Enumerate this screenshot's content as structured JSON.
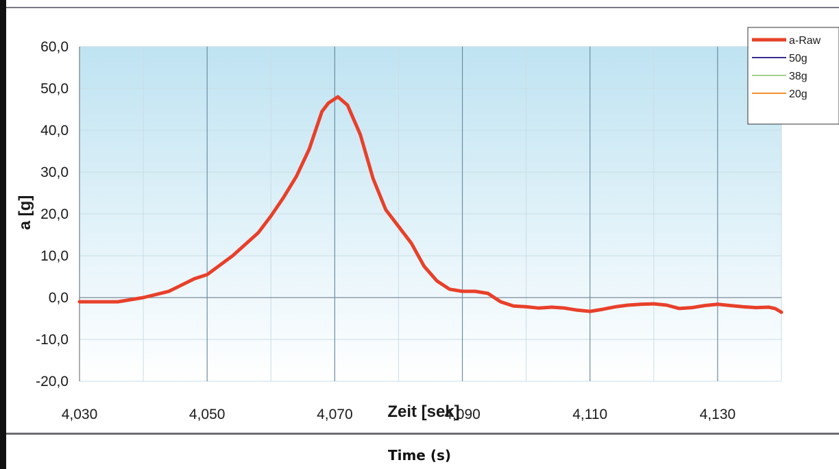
{
  "caption": "Time (s)",
  "chart_data": {
    "type": "line",
    "title": "",
    "xlabel": "Zeit [sek]",
    "ylabel": "a [g]",
    "xlim": [
      4.03,
      4.14
    ],
    "ylim": [
      -20,
      60
    ],
    "grid": true,
    "x_ticks": [
      "4,030",
      "4,050",
      "4,070",
      "4,090",
      "4,110",
      "4,130"
    ],
    "y_ticks": [
      "60,0",
      "50,0",
      "40,0",
      "30,0",
      "20,0",
      "10,0",
      "0,0",
      "-10,0",
      "-20,0"
    ],
    "legend_position": "top-right",
    "legend": [
      {
        "name": "a-Raw",
        "color": "#e8402a"
      },
      {
        "name": "50g",
        "color": "#3a2d8f"
      },
      {
        "name": "38g",
        "color": "#a6cf8a"
      },
      {
        "name": "20g",
        "color": "#f0902a"
      }
    ],
    "series": [
      {
        "name": "a-Raw",
        "color": "#e8402a",
        "x": [
          4.03,
          4.036,
          4.04,
          4.044,
          4.048,
          4.05,
          4.054,
          4.058,
          4.06,
          4.062,
          4.064,
          4.066,
          4.068,
          4.069,
          4.0705,
          4.072,
          4.074,
          4.076,
          4.078,
          4.08,
          4.082,
          4.084,
          4.086,
          4.088,
          4.09,
          4.092,
          4.094,
          4.096,
          4.098,
          4.1,
          4.102,
          4.104,
          4.106,
          4.108,
          4.11,
          4.112,
          4.114,
          4.116,
          4.118,
          4.12,
          4.122,
          4.124,
          4.126,
          4.128,
          4.13,
          4.132,
          4.134,
          4.136,
          4.138,
          4.139,
          4.14
        ],
        "y": [
          -1.0,
          -1.0,
          0.0,
          1.5,
          4.5,
          5.5,
          10.0,
          15.5,
          19.5,
          24.0,
          29.0,
          35.5,
          44.5,
          46.5,
          48.0,
          46.0,
          39.0,
          28.5,
          21.0,
          17.0,
          13.0,
          7.5,
          4.0,
          2.0,
          1.5,
          1.5,
          1.0,
          -1.0,
          -2.0,
          -2.2,
          -2.5,
          -2.3,
          -2.5,
          -3.0,
          -3.3,
          -2.8,
          -2.2,
          -1.8,
          -1.6,
          -1.5,
          -1.8,
          -2.6,
          -2.4,
          -1.9,
          -1.6,
          -1.9,
          -2.2,
          -2.4,
          -2.3,
          -2.6,
          -3.5
        ]
      },
      {
        "name": "50g",
        "color": "#3a2d8f",
        "x": [],
        "y": []
      },
      {
        "name": "38g",
        "color": "#a6cf8a",
        "x": [],
        "y": []
      },
      {
        "name": "20g",
        "color": "#f0902a",
        "x": [],
        "y": []
      }
    ]
  }
}
